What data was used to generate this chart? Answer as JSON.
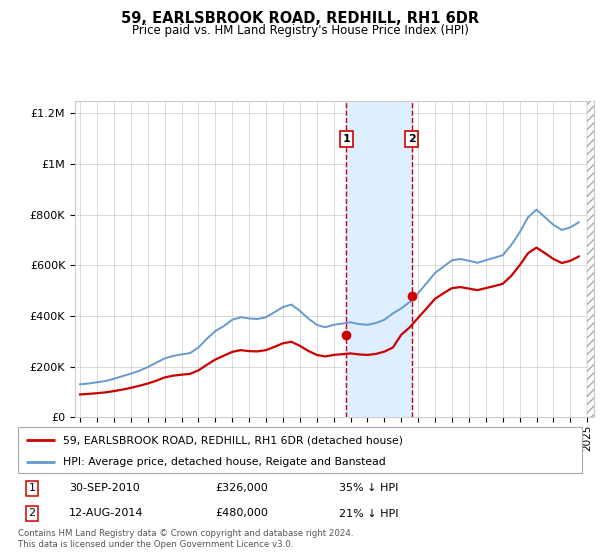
{
  "title": "59, EARLSBROOK ROAD, REDHILL, RH1 6DR",
  "subtitle": "Price paid vs. HM Land Registry's House Price Index (HPI)",
  "legend_line1": "59, EARLSBROOK ROAD, REDHILL, RH1 6DR (detached house)",
  "legend_line2": "HPI: Average price, detached house, Reigate and Banstead",
  "transaction1_date": "30-SEP-2010",
  "transaction1_price": "£326,000",
  "transaction1_hpi": "35% ↓ HPI",
  "transaction1_year": 2010.75,
  "transaction1_price_val": 326000,
  "transaction2_date": "12-AUG-2014",
  "transaction2_price": "£480,000",
  "transaction2_hpi": "21% ↓ HPI",
  "transaction2_year": 2014.62,
  "transaction2_price_val": 480000,
  "footnote": "Contains HM Land Registry data © Crown copyright and database right 2024.\nThis data is licensed under the Open Government Licence v3.0.",
  "hpi_color": "#6699cc",
  "price_color": "#cc0000",
  "highlight_color": "#ddeeff",
  "ylim_max": 1250000,
  "years_hpi": [
    1995.0,
    1995.5,
    1996.0,
    1996.5,
    1997.0,
    1997.5,
    1998.0,
    1998.5,
    1999.0,
    1999.5,
    2000.0,
    2000.5,
    2001.0,
    2001.5,
    2002.0,
    2002.5,
    2003.0,
    2003.5,
    2004.0,
    2004.5,
    2005.0,
    2005.5,
    2006.0,
    2006.5,
    2007.0,
    2007.5,
    2008.0,
    2008.5,
    2009.0,
    2009.5,
    2010.0,
    2010.5,
    2011.0,
    2011.5,
    2012.0,
    2012.5,
    2013.0,
    2013.5,
    2014.0,
    2014.5,
    2015.0,
    2015.5,
    2016.0,
    2016.5,
    2017.0,
    2017.5,
    2018.0,
    2018.5,
    2019.0,
    2019.5,
    2020.0,
    2020.5,
    2021.0,
    2021.5,
    2022.0,
    2022.5,
    2023.0,
    2023.5,
    2024.0,
    2024.5
  ],
  "hpi_values": [
    130000,
    133000,
    138000,
    143000,
    152000,
    162000,
    172000,
    183000,
    198000,
    215000,
    232000,
    242000,
    248000,
    253000,
    275000,
    310000,
    340000,
    360000,
    385000,
    395000,
    390000,
    388000,
    395000,
    415000,
    435000,
    445000,
    420000,
    390000,
    365000,
    355000,
    365000,
    370000,
    375000,
    368000,
    365000,
    372000,
    385000,
    410000,
    430000,
    455000,
    490000,
    530000,
    570000,
    595000,
    620000,
    625000,
    618000,
    610000,
    620000,
    630000,
    640000,
    680000,
    730000,
    790000,
    820000,
    790000,
    760000,
    740000,
    750000,
    770000
  ],
  "years_price": [
    1995.0,
    1995.5,
    1996.0,
    1996.5,
    1997.0,
    1997.5,
    1998.0,
    1998.5,
    1999.0,
    1999.5,
    2000.0,
    2000.5,
    2001.0,
    2001.5,
    2002.0,
    2002.5,
    2003.0,
    2003.5,
    2004.0,
    2004.5,
    2005.0,
    2005.5,
    2006.0,
    2006.5,
    2007.0,
    2007.5,
    2008.0,
    2008.5,
    2009.0,
    2009.5,
    2010.0,
    2010.5,
    2011.0,
    2011.5,
    2012.0,
    2012.5,
    2013.0,
    2013.5,
    2014.0,
    2014.5,
    2015.0,
    2015.5,
    2016.0,
    2016.5,
    2017.0,
    2017.5,
    2018.0,
    2018.5,
    2019.0,
    2019.5,
    2020.0,
    2020.5,
    2021.0,
    2021.5,
    2022.0,
    2022.5,
    2023.0,
    2023.5,
    2024.0,
    2024.5
  ],
  "price_values": [
    90000,
    92000,
    95000,
    98000,
    103000,
    109000,
    116000,
    124000,
    133000,
    144000,
    157000,
    164000,
    168000,
    171000,
    185000,
    207000,
    228000,
    243000,
    258000,
    265000,
    261000,
    260000,
    265000,
    278000,
    292000,
    298000,
    282000,
    262000,
    246000,
    240000,
    246000,
    249000,
    252000,
    248000,
    246000,
    250000,
    259000,
    275000,
    326000,
    355000,
    393000,
    430000,
    468000,
    490000,
    510000,
    514000,
    508000,
    502000,
    510000,
    518000,
    527000,
    558000,
    600000,
    648000,
    670000,
    648000,
    625000,
    609000,
    618000,
    635000
  ]
}
